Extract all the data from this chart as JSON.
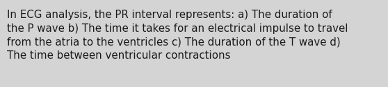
{
  "text": "In ECG analysis, the PR interval represents: a) The duration of\nthe P wave b) The time it takes for an electrical impulse to travel\nfrom the atria to the ventricles c) The duration of the T wave d)\nThe time between ventricular contractions",
  "background_color": "#d4d4d4",
  "text_color": "#1a1a1a",
  "font_size": 10.8,
  "fig_width": 5.58,
  "fig_height": 1.26,
  "dpi": 100
}
